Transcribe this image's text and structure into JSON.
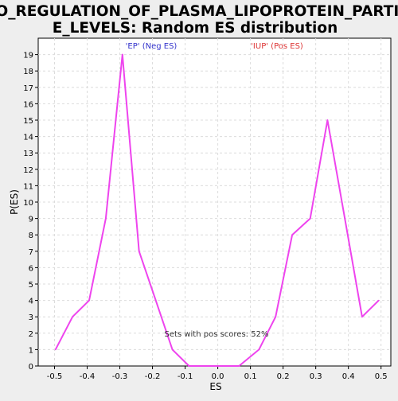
{
  "chart_data": {
    "type": "line",
    "title": "GO_REGULATION_OF_PLASMA_LIPOPROTEIN_PARTICLE_LEVELS: Random ES distribution",
    "title_lines": [
      "GO_REGULATION_OF_PLASMA_LIPOPROTEIN_PARTICL",
      "E_LEVELS: Random ES distribution"
    ],
    "xlabel": "ES",
    "ylabel": "P(ES)",
    "xlim": [
      -0.55,
      0.53
    ],
    "ylim": [
      0,
      20
    ],
    "x_ticks": [
      -0.5,
      -0.4,
      -0.3,
      -0.2,
      -0.1,
      0.0,
      0.1,
      0.2,
      0.3,
      0.4,
      0.5
    ],
    "x_tick_labels": [
      "-0.5",
      "-0.4",
      "-0.3",
      "-0.2",
      "-0.1",
      "0.0",
      "0.1",
      "0.2",
      "0.3",
      "0.4",
      "0.5"
    ],
    "y_ticks": [
      0,
      1,
      2,
      3,
      4,
      5,
      6,
      7,
      8,
      9,
      10,
      11,
      12,
      13,
      14,
      15,
      16,
      17,
      18,
      19
    ],
    "grid": true,
    "series": [
      {
        "color": "#ee44ee",
        "x": [
          -0.497,
          -0.445,
          -0.394,
          -0.343,
          -0.292,
          -0.241,
          -0.19,
          -0.139,
          -0.088,
          -0.037,
          0.014,
          0.065,
          0.126,
          0.177,
          0.228,
          0.283,
          0.336,
          0.389,
          0.442,
          0.493
        ],
        "y": [
          1,
          3,
          4,
          9,
          19,
          7,
          4,
          1,
          0,
          0,
          0,
          0,
          1,
          3,
          8,
          9,
          15,
          9,
          3,
          4
        ]
      }
    ],
    "annotations": {
      "neg_label": "'EP' (Neg ES)",
      "neg_color": "#3333cc",
      "pos_label": "'IUP' (Pos ES)",
      "pos_color": "#dd3333",
      "footer": "Sets with pos scores: 52%"
    }
  }
}
